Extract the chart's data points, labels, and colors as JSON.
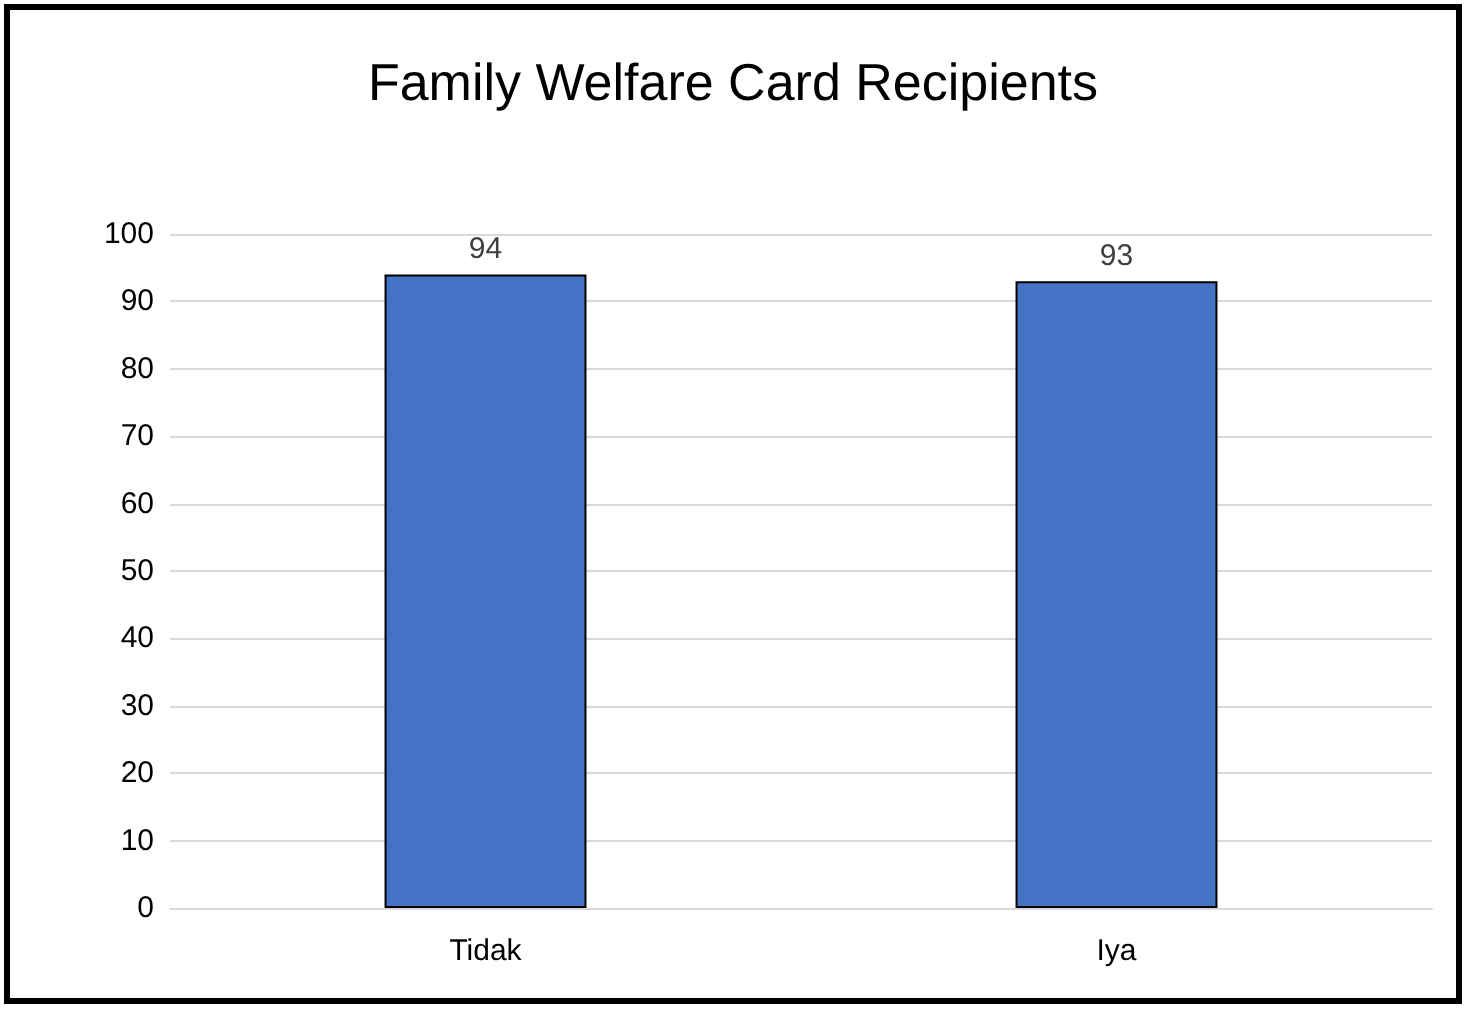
{
  "chart_data": {
    "type": "bar",
    "title": "Family Welfare Card Recipients",
    "categories": [
      "Tidak",
      "Iya"
    ],
    "values": [
      94,
      93
    ],
    "color": "#4472c4",
    "ylim": [
      0,
      100
    ],
    "yticks": [
      0,
      10,
      20,
      30,
      40,
      50,
      60,
      70,
      80,
      90,
      100
    ],
    "grid": "y",
    "data_labels": true
  }
}
